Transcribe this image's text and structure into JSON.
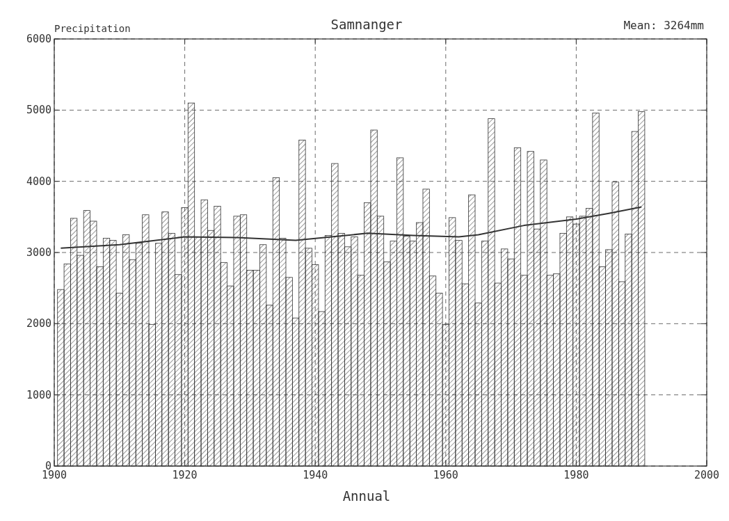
{
  "chart_data": {
    "type": "bar",
    "title": "Samnanger",
    "ylabel": "Precipitation",
    "xlabel": "Annual",
    "annotations": [
      "Mean: 3264mm"
    ],
    "x": [
      1901,
      1902,
      1903,
      1904,
      1905,
      1906,
      1907,
      1908,
      1909,
      1910,
      1911,
      1912,
      1913,
      1914,
      1915,
      1916,
      1917,
      1918,
      1919,
      1920,
      1921,
      1922,
      1923,
      1924,
      1925,
      1926,
      1927,
      1928,
      1929,
      1930,
      1931,
      1932,
      1933,
      1934,
      1935,
      1936,
      1937,
      1938,
      1939,
      1940,
      1941,
      1942,
      1943,
      1944,
      1945,
      1946,
      1947,
      1948,
      1949,
      1950,
      1951,
      1952,
      1953,
      1954,
      1955,
      1956,
      1957,
      1958,
      1959,
      1960,
      1961,
      1962,
      1963,
      1964,
      1965,
      1966,
      1967,
      1968,
      1969,
      1970,
      1971,
      1972,
      1973,
      1974,
      1975,
      1976,
      1977,
      1978,
      1979,
      1980,
      1981,
      1982,
      1983,
      1984,
      1985,
      1986,
      1987,
      1988,
      1989,
      1990
    ],
    "series": [
      {
        "color": "#333333",
        "values": [
          2480,
          2840,
          3480,
          2960,
          3590,
          3440,
          2800,
          3200,
          3170,
          2430,
          3250,
          2900,
          3130,
          3530,
          1990,
          3130,
          3570,
          3270,
          2690,
          3630,
          5100,
          3220,
          3740,
          3310,
          3650,
          2860,
          2530,
          3510,
          3530,
          2750,
          2750,
          3110,
          2260,
          4050,
          3200,
          2650,
          2080,
          4580,
          3060,
          2830,
          2170,
          3240,
          4250,
          3270,
          3080,
          3220,
          2680,
          3700,
          4720,
          3510,
          2870,
          3160,
          4330,
          3230,
          3160,
          3420,
          3890,
          2670,
          2430,
          1990,
          3490,
          3170,
          2560,
          3810,
          2290,
          3160,
          4880,
          2570,
          3050,
          2910,
          4470,
          2680,
          4420,
          3330,
          4300,
          2680,
          2700,
          3270,
          3500,
          3400,
          3510,
          3620,
          4960,
          2800,
          3040,
          3990,
          2590,
          3260,
          4700,
          4980
        ]
      },
      {
        "type": "line",
        "color": "#333333",
        "x": [
          1901,
          1910,
          1920,
          1928,
          1937,
          1948,
          1955,
          1962,
          1965,
          1972,
          1980,
          1985,
          1990
        ],
        "values": [
          3060,
          3110,
          3220,
          3210,
          3170,
          3270,
          3240,
          3220,
          3250,
          3380,
          3470,
          3550,
          3640
        ]
      }
    ],
    "xlim": [
      1900,
      2000
    ],
    "xticks": [
      1900,
      1920,
      1940,
      1960,
      1980,
      2000
    ],
    "ylim": [
      0,
      6000
    ],
    "yticks": [
      0,
      1000,
      2000,
      3000,
      4000,
      5000,
      6000
    ],
    "grid": true,
    "line_style": "solid",
    "marker": "none"
  }
}
